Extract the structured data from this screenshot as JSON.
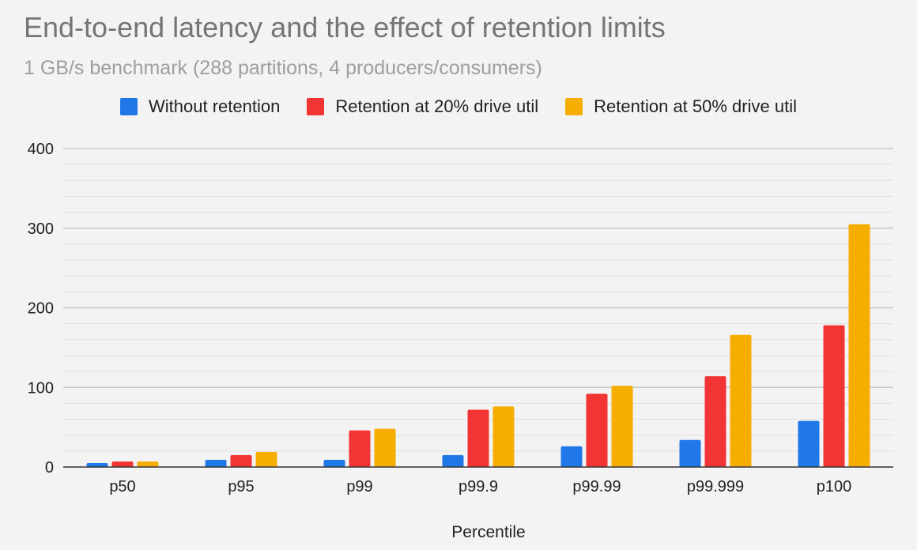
{
  "colors": {
    "without": "#1f77e8",
    "ret20": "#f23434",
    "ret50": "#f5ad00",
    "grid_major": "#c8c8c8",
    "grid_minor": "#e0e0e0",
    "axis": "#333333"
  },
  "chart_data": {
    "type": "bar",
    "title": "End-to-end latency and the effect of retention limits",
    "subtitle": "1 GB/s benchmark (288 partitions, 4 producers/consumers)",
    "xlabel": "Percentile",
    "ylabel": "",
    "ylim": [
      0,
      400
    ],
    "yticks": [
      0,
      100,
      200,
      300,
      400
    ],
    "grid": true,
    "legend_position": "top",
    "categories": [
      "p50",
      "p95",
      "p99",
      "p99.9",
      "p99.99",
      "p99.999",
      "p100"
    ],
    "series": [
      {
        "name": "Without retention",
        "color_key": "without",
        "values": [
          5,
          9,
          9,
          15,
          26,
          34,
          58
        ]
      },
      {
        "name": "Retention at 20% drive util",
        "color_key": "ret20",
        "values": [
          7,
          15,
          46,
          72,
          92,
          114,
          178
        ]
      },
      {
        "name": "Retention at 50% drive util",
        "color_key": "ret50",
        "values": [
          7,
          19,
          48,
          76,
          102,
          166,
          305
        ]
      }
    ]
  }
}
